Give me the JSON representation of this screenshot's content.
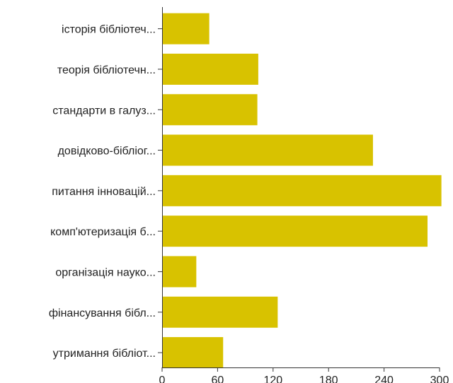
{
  "chart_data": {
    "type": "bar",
    "orientation": "horizontal",
    "categories": [
      "історія бібліотеч...",
      "теорія бібліотечн...",
      "стандарти в галуз...",
      "довідково-бібліог...",
      "питання інновацій...",
      "комп'ютеризація б...",
      "організація науко...",
      "фінансування бібл...",
      "утримання бібліот..."
    ],
    "values": [
      51,
      104,
      103,
      228,
      302,
      287,
      37,
      125,
      66
    ],
    "xlim": [
      0,
      300
    ],
    "xticks": [
      0,
      60,
      120,
      180,
      240,
      300
    ],
    "title": "",
    "xlabel": "",
    "ylabel": "",
    "grid": false,
    "legend": "none"
  },
  "colors": {
    "bar": "#D8C200",
    "axis": "#333333",
    "text": "#222222"
  }
}
